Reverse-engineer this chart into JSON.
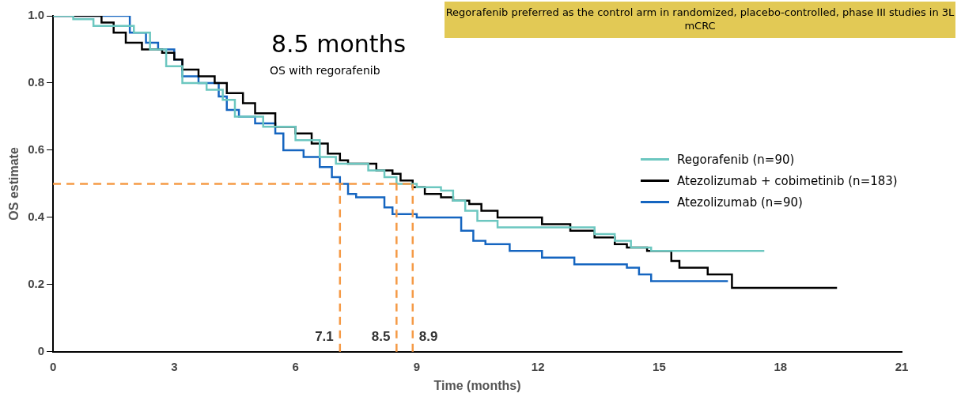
{
  "chart_data": {
    "type": "step",
    "xlabel": "Time (months)",
    "ylabel": "OS estimate",
    "xlim": [
      0,
      21
    ],
    "xticks": [
      0,
      3,
      6,
      9,
      12,
      15,
      18,
      21
    ],
    "ylim": [
      0,
      1
    ],
    "yticks": [
      {
        "value": 0,
        "label": "0"
      },
      {
        "value": 0.2,
        "label": "0.2"
      },
      {
        "value": 0.4,
        "label": "0.4"
      },
      {
        "value": 0.6,
        "label": "0.6"
      },
      {
        "value": 0.8,
        "label": "0.8"
      },
      {
        "value": 1,
        "label": "1.0"
      }
    ],
    "grid": false,
    "legend": "right",
    "marker": "none",
    "line_style": "solid",
    "series": [
      {
        "name": "Regorafenib (n=90)",
        "color": "#6cc7c0",
        "x": [
          0,
          0.5,
          1,
          2,
          2.4,
          2.8,
          3.2,
          3.8,
          4.2,
          4.5,
          5.2,
          6,
          6.6,
          7,
          7.8,
          8.2,
          8.5,
          9,
          9.6,
          9.9,
          10.2,
          10.5,
          11,
          13.4,
          13.9,
          14.3,
          14.8,
          17.6
        ],
        "values": [
          1,
          0.99,
          0.97,
          0.95,
          0.9,
          0.85,
          0.8,
          0.78,
          0.75,
          0.7,
          0.67,
          0.63,
          0.58,
          0.56,
          0.54,
          0.52,
          0.5,
          0.49,
          0.48,
          0.45,
          0.42,
          0.39,
          0.37,
          0.35,
          0.33,
          0.31,
          0.3,
          0.3
        ]
      },
      {
        "name": "Atezolizumab + cobimetinib (n=183)",
        "color": "#000000",
        "x": [
          0,
          1.2,
          1.5,
          1.8,
          2.2,
          2.7,
          3,
          3.2,
          3.6,
          4,
          4.3,
          4.7,
          5,
          5.5,
          6,
          6.4,
          6.8,
          7.1,
          7.3,
          8,
          8.4,
          8.6,
          8.9,
          9.2,
          9.6,
          9.9,
          10.3,
          10.6,
          11,
          12.1,
          12.8,
          13.4,
          13.9,
          14.2,
          14.7,
          15.3,
          15.5,
          16.2,
          16.8,
          19.4
        ],
        "values": [
          1,
          0.98,
          0.95,
          0.92,
          0.9,
          0.89,
          0.87,
          0.84,
          0.82,
          0.8,
          0.77,
          0.74,
          0.71,
          0.67,
          0.65,
          0.62,
          0.59,
          0.57,
          0.56,
          0.54,
          0.53,
          0.51,
          0.49,
          0.47,
          0.46,
          0.45,
          0.44,
          0.42,
          0.4,
          0.38,
          0.36,
          0.34,
          0.32,
          0.31,
          0.3,
          0.27,
          0.25,
          0.23,
          0.19,
          0.19
        ]
      },
      {
        "name": "Atezolizumab (n=90)",
        "color": "#1565c0",
        "x": [
          0,
          1.9,
          2.3,
          2.6,
          3,
          3.2,
          3.6,
          4.1,
          4.3,
          4.6,
          5,
          5.5,
          5.7,
          6.2,
          6.6,
          6.9,
          7.1,
          7.3,
          7.5,
          8.2,
          8.4,
          9,
          10.1,
          10.4,
          10.7,
          11.3,
          12.1,
          12.9,
          14.2,
          14.5,
          14.8,
          16.7
        ],
        "values": [
          1,
          0.95,
          0.92,
          0.9,
          0.87,
          0.82,
          0.8,
          0.76,
          0.72,
          0.7,
          0.68,
          0.65,
          0.6,
          0.58,
          0.55,
          0.52,
          0.5,
          0.47,
          0.46,
          0.43,
          0.41,
          0.4,
          0.36,
          0.33,
          0.32,
          0.3,
          0.28,
          0.26,
          0.25,
          0.23,
          0.21,
          0.21
        ]
      }
    ],
    "ref_lines": [
      {
        "axis": "y",
        "value": 0.5,
        "color": "#f59a46",
        "line_style": "dashed"
      },
      {
        "axis": "x",
        "value": 7.1,
        "label": "7.1",
        "color": "#f59a46",
        "line_style": "dashed"
      },
      {
        "axis": "x",
        "value": 8.5,
        "label": "8.5",
        "color": "#f59a46",
        "line_style": "dashed"
      },
      {
        "axis": "x",
        "value": 8.9,
        "label": "8.9",
        "color": "#f59a46",
        "line_style": "dashed"
      }
    ],
    "annotations": [
      "8.5 months",
      "OS with regorafenib",
      "Regorafenib preferred as the control arm in randomized, placebo-controlled, phase III studies in 3L mCRC"
    ]
  }
}
